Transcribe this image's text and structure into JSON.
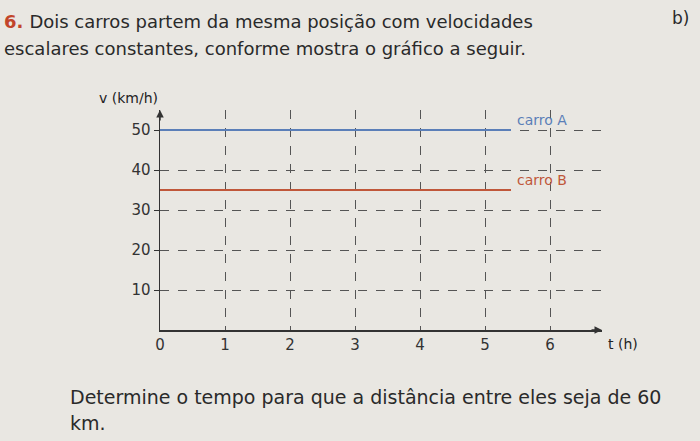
{
  "header": {
    "number": "6.",
    "text": "Dois carros partem da mesma posição com velocidades escalares constantes, conforme mostra o gráfico a seguir.",
    "side_label": "b)"
  },
  "chart_data": {
    "type": "line",
    "x_label": "t (h)",
    "y_label": "v (km/h)",
    "x": [
      0,
      5.4
    ],
    "series": [
      {
        "name": "carro A",
        "color": "#5b7fb8",
        "values": [
          50,
          50
        ]
      },
      {
        "name": "carro B",
        "color": "#c0573a",
        "values": [
          35,
          35
        ]
      }
    ],
    "xlim": [
      0,
      6.8
    ],
    "ylim": [
      0,
      55
    ],
    "xticks": [
      0,
      1,
      2,
      3,
      4,
      5,
      6
    ],
    "yticks": [
      10,
      20,
      30,
      40,
      50
    ],
    "grid": true
  },
  "footer": {
    "text": "Determine o tempo para que a distância entre eles seja de 60 km."
  }
}
